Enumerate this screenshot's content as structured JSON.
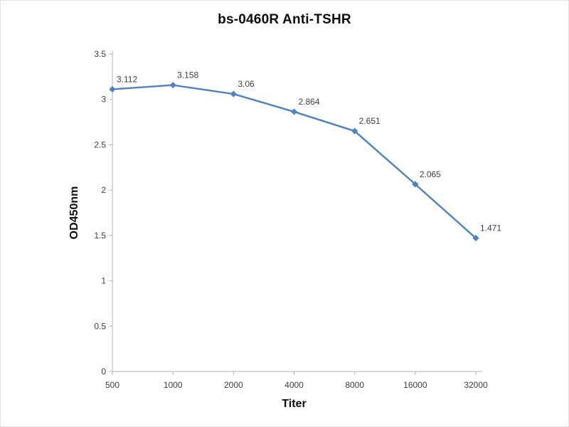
{
  "title": "bs-0460R Anti-TSHR",
  "chart_data": {
    "type": "line",
    "title": "bs-0460R Anti-TSHR",
    "xlabel": "Titer",
    "ylabel": "OD450nm",
    "categories": [
      "500",
      "1000",
      "2000",
      "4000",
      "8000",
      "16000",
      "32000"
    ],
    "values": [
      3.112,
      3.158,
      3.06,
      2.864,
      2.651,
      2.065,
      1.471
    ],
    "point_labels": [
      "3.112",
      "3.158",
      "3.06",
      "2.864",
      "2.651",
      "2.065",
      "1.471"
    ],
    "ylim": [
      0,
      3.5
    ],
    "ytick_step": 0.5,
    "yticks": [
      "0",
      "0.5",
      "1",
      "1.5",
      "2",
      "2.5",
      "3",
      "3.5"
    ],
    "grid": false,
    "legend": "none",
    "marker": "diamond",
    "line_color": "#4f81bd",
    "axis_color": "#b3b3b3",
    "label_color": "#3f3f3f",
    "axis_title_color": "#0d0d0d"
  }
}
